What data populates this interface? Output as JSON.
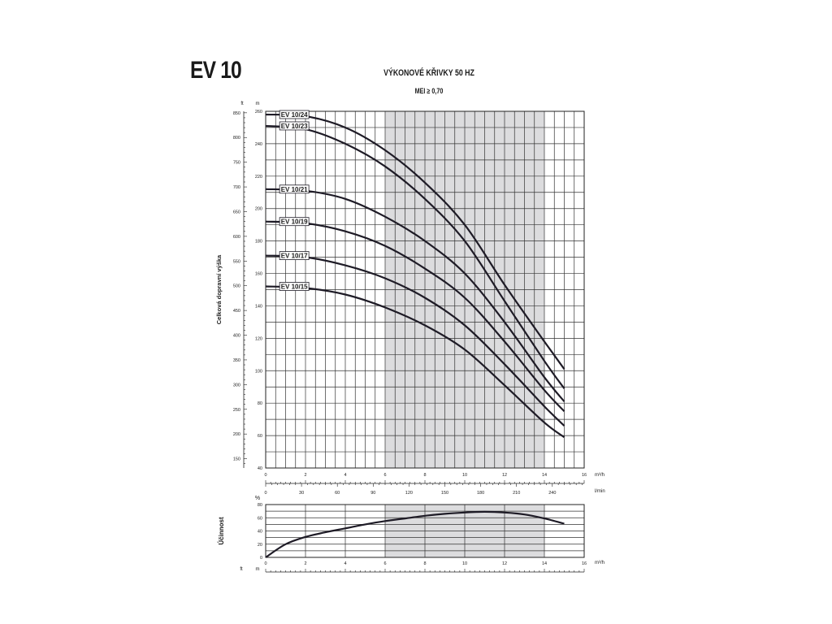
{
  "header": {
    "model": "EV 10",
    "title": "VÝKONOVÉ KŘIVKY 50 HZ",
    "subtitle": "MEI ≥ 0,70"
  },
  "chart_data": [
    {
      "type": "line",
      "name": "head-curves",
      "ylabel": "Celková dopravní výška",
      "y_unit_left": "ft",
      "y_unit_right": "m",
      "x_unit": "m³/h",
      "x_secondary_unit": "l/min",
      "xlim": [
        0,
        16
      ],
      "ylim": [
        40,
        260
      ],
      "x_ticks": [
        0,
        2,
        4,
        6,
        8,
        10,
        12,
        14,
        16
      ],
      "y_ticks": [
        40,
        60,
        80,
        100,
        120,
        140,
        160,
        180,
        200,
        220,
        240,
        260
      ],
      "x_secondary_ticks": [
        0,
        30,
        60,
        90,
        120,
        150,
        180,
        210,
        240
      ],
      "ft_ticks": [
        150,
        200,
        250,
        300,
        350,
        400,
        450,
        500,
        550,
        600,
        650,
        700,
        750,
        800,
        850
      ],
      "shaded_range": [
        6,
        14
      ],
      "grid": true,
      "series": [
        {
          "name": "EV 10/24",
          "x": [
            0,
            2,
            4,
            6,
            8,
            10,
            12,
            14,
            15
          ],
          "y": [
            258,
            257,
            250,
            236,
            216,
            190,
            153,
            118,
            101
          ]
        },
        {
          "name": "EV 10/23",
          "x": [
            0,
            2,
            4,
            6,
            8,
            10,
            12,
            14,
            15
          ],
          "y": [
            251,
            249,
            240,
            226,
            206,
            180,
            143,
            106,
            89
          ]
        },
        {
          "name": "EV 10/21",
          "x": [
            0,
            2,
            4,
            6,
            8,
            10,
            12,
            14,
            15
          ],
          "y": [
            212,
            211,
            206,
            195,
            180,
            160,
            130,
            96,
            81
          ]
        },
        {
          "name": "EV 10/19",
          "x": [
            0,
            2,
            4,
            6,
            8,
            10,
            12,
            14,
            15
          ],
          "y": [
            192,
            191,
            186,
            177,
            163,
            145,
            118,
            88,
            75
          ]
        },
        {
          "name": "EV 10/17",
          "x": [
            0,
            2,
            4,
            6,
            8,
            10,
            12,
            14,
            15
          ],
          "y": [
            171,
            170,
            165,
            157,
            145,
            128,
            104,
            78,
            66
          ]
        },
        {
          "name": "EV 10/15",
          "x": [
            0,
            2,
            4,
            6,
            8,
            10,
            12,
            14,
            15
          ],
          "y": [
            152,
            151,
            147,
            139,
            128,
            113,
            91,
            68,
            59
          ]
        }
      ]
    },
    {
      "type": "line",
      "name": "efficiency-curve",
      "ylabel": "Účinnost",
      "y_unit": "%",
      "x_unit": "m³/h",
      "xlim": [
        0,
        16
      ],
      "ylim": [
        0,
        80
      ],
      "x_ticks": [
        0,
        2,
        4,
        6,
        8,
        10,
        12,
        14,
        16
      ],
      "y_ticks": [
        0,
        20,
        40,
        60,
        80
      ],
      "shaded_range": [
        6,
        14
      ],
      "grid": true,
      "series": [
        {
          "x": [
            0,
            1,
            2,
            3,
            4,
            5,
            6,
            7,
            8,
            9,
            10,
            11,
            12,
            13,
            14,
            15
          ],
          "y": [
            0,
            20,
            31,
            38,
            44,
            50,
            55,
            59,
            63,
            66,
            68,
            69,
            68,
            65,
            59,
            51
          ]
        }
      ]
    }
  ],
  "footer": {
    "ft_label": "ft",
    "m_label": "m"
  }
}
